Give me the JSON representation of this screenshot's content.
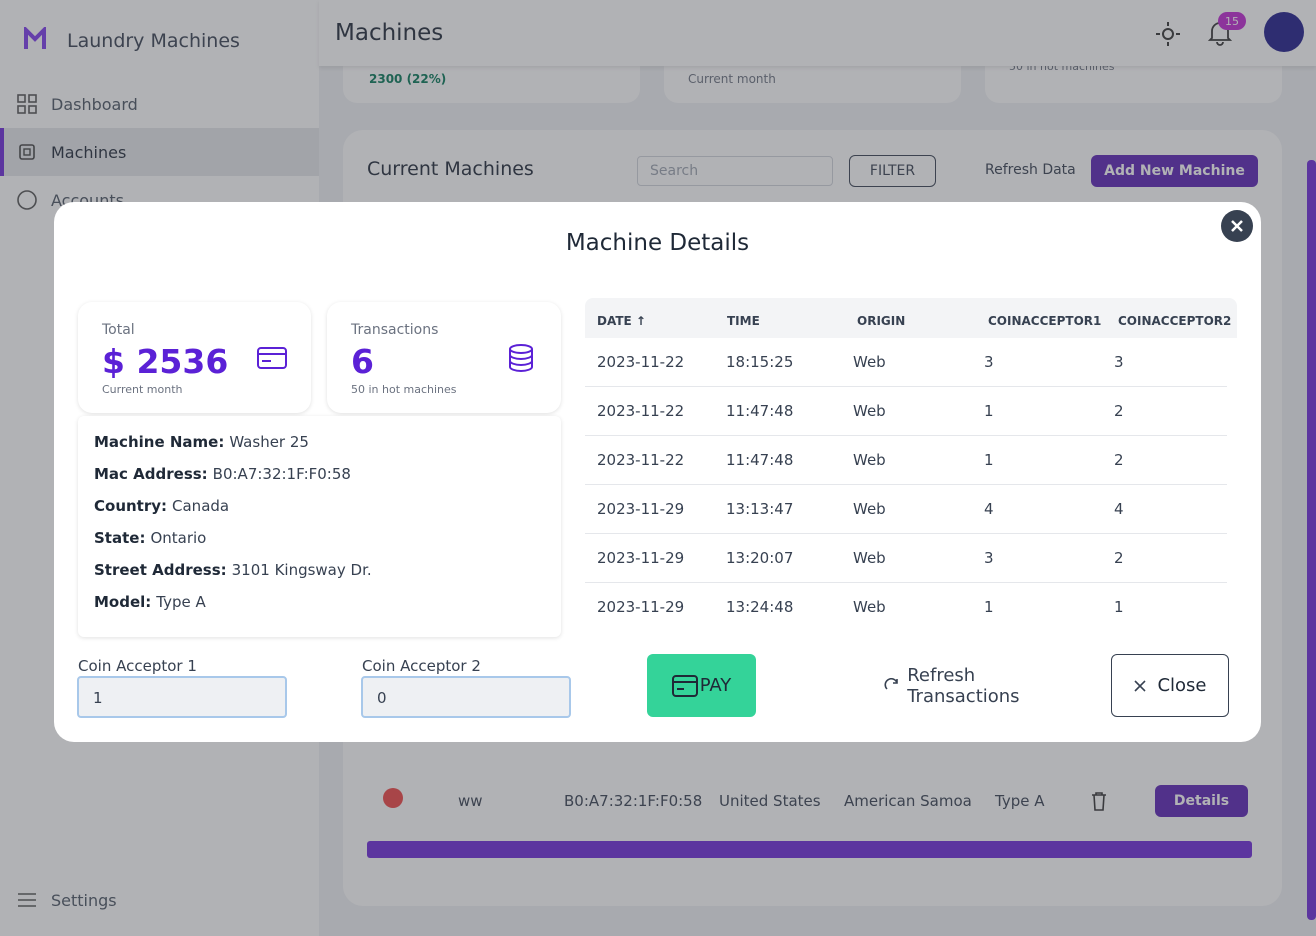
{
  "sidebar": {
    "brand": "Laundry Machines",
    "nav": [
      "Dashboard",
      "Machines",
      "Accounts"
    ],
    "settings": "Settings"
  },
  "header": {
    "title": "Machines",
    "notifications": "15"
  },
  "stats": {
    "change": "2300 (22%)",
    "period": "Current month",
    "hot": "50 in hot machines"
  },
  "panel": {
    "title": "Current Machines",
    "search": "Search",
    "filter": "FILTER",
    "refresh": "Refresh Data",
    "add": "Add New Machine",
    "row": {
      "name": "ww",
      "mac": "B0:A7:32:1F:F0:58",
      "country": "United States",
      "state": "American Samoa",
      "model": "Type A",
      "action": "Details"
    }
  },
  "modal": {
    "title": "Machine Details",
    "total": {
      "label": "Total",
      "value": "$ 2536",
      "note": "Current month"
    },
    "transactions": {
      "label": "Transactions",
      "value": "6",
      "note": "50 in hot machines"
    },
    "details": [
      {
        "label": "Machine Name:",
        "value": "Washer 25"
      },
      {
        "label": "Mac Address:",
        "value": "B0:A7:32:1F:F0:58"
      },
      {
        "label": "Country:",
        "value": "Canada"
      },
      {
        "label": "State:",
        "value": "Ontario"
      },
      {
        "label": "Street Address:",
        "value": "3101 Kingsway Dr."
      },
      {
        "label": "Model:",
        "value": "Type A"
      }
    ],
    "table": {
      "columns": [
        "DATE ↑",
        "TIME",
        "ORIGIN",
        "COINACCEPTOR1",
        "COINACCEPTOR2"
      ],
      "rows": [
        [
          "2023-11-22",
          "18:15:25",
          "Web",
          "3",
          "3"
        ],
        [
          "2023-11-22",
          "11:47:48",
          "Web",
          "1",
          "2"
        ],
        [
          "2023-11-22",
          "11:47:48",
          "Web",
          "1",
          "2"
        ],
        [
          "2023-11-29",
          "13:13:47",
          "Web",
          "4",
          "4"
        ],
        [
          "2023-11-29",
          "13:20:07",
          "Web",
          "3",
          "2"
        ],
        [
          "2023-11-29",
          "13:24:48",
          "Web",
          "1",
          "1"
        ]
      ]
    },
    "inputs": [
      {
        "label": "Coin Acceptor 1",
        "value": "1"
      },
      {
        "label": "Coin Acceptor 2",
        "value": "0"
      }
    ],
    "pay": "PAY",
    "refresh": "Refresh Transactions",
    "close": "Close"
  }
}
